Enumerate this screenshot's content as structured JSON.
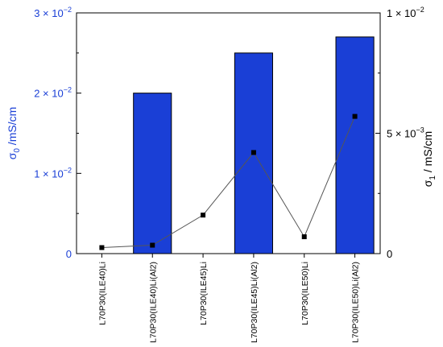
{
  "chart_data": {
    "type": "bar+line",
    "categories": [
      "L70P30(ILE40)Li",
      "L70P30(ILE40)Li(Al2)",
      "L70P30(ILE45)Li",
      "L70P30(ILE45)Li(Al2)",
      "L70P30(ILE50)Li",
      "L70P30(ILE50)Li(Al2)"
    ],
    "series": [
      {
        "axis": "left",
        "kind": "bar",
        "values": [
          null,
          0.02,
          null,
          0.025,
          null,
          0.027
        ]
      },
      {
        "axis": "right",
        "kind": "line",
        "values": [
          0.00025,
          0.00035,
          0.0016,
          0.0042,
          0.0007,
          0.0057
        ]
      }
    ],
    "left_axis": {
      "label_main": "σ",
      "label_sub": "0",
      "label_rest": " /mS/cm",
      "range": [
        0,
        0.03
      ],
      "ticks": [
        {
          "value": 0,
          "base": "0",
          "exp": ""
        },
        {
          "value": 0.01,
          "base": "1 × 10",
          "exp": "−2"
        },
        {
          "value": 0.02,
          "base": "2 × 10",
          "exp": "−2"
        },
        {
          "value": 0.03,
          "base": "3 × 10",
          "exp": "−2"
        }
      ]
    },
    "right_axis": {
      "label_main": "σ",
      "label_sub": "1",
      "label_rest": " / mS/cm",
      "range": [
        0,
        0.01
      ],
      "ticks": [
        {
          "value": 0,
          "base": "0",
          "exp": ""
        },
        {
          "value": 0.005,
          "base": "5 × 10",
          "exp": "−3"
        },
        {
          "value": 0.01,
          "base": "1 × 10",
          "exp": "−2"
        }
      ]
    },
    "colors": {
      "bar": "#1a3fd6",
      "line": "#555555",
      "marker": "#000000",
      "left_axis_text": "#1a3fd6"
    }
  }
}
